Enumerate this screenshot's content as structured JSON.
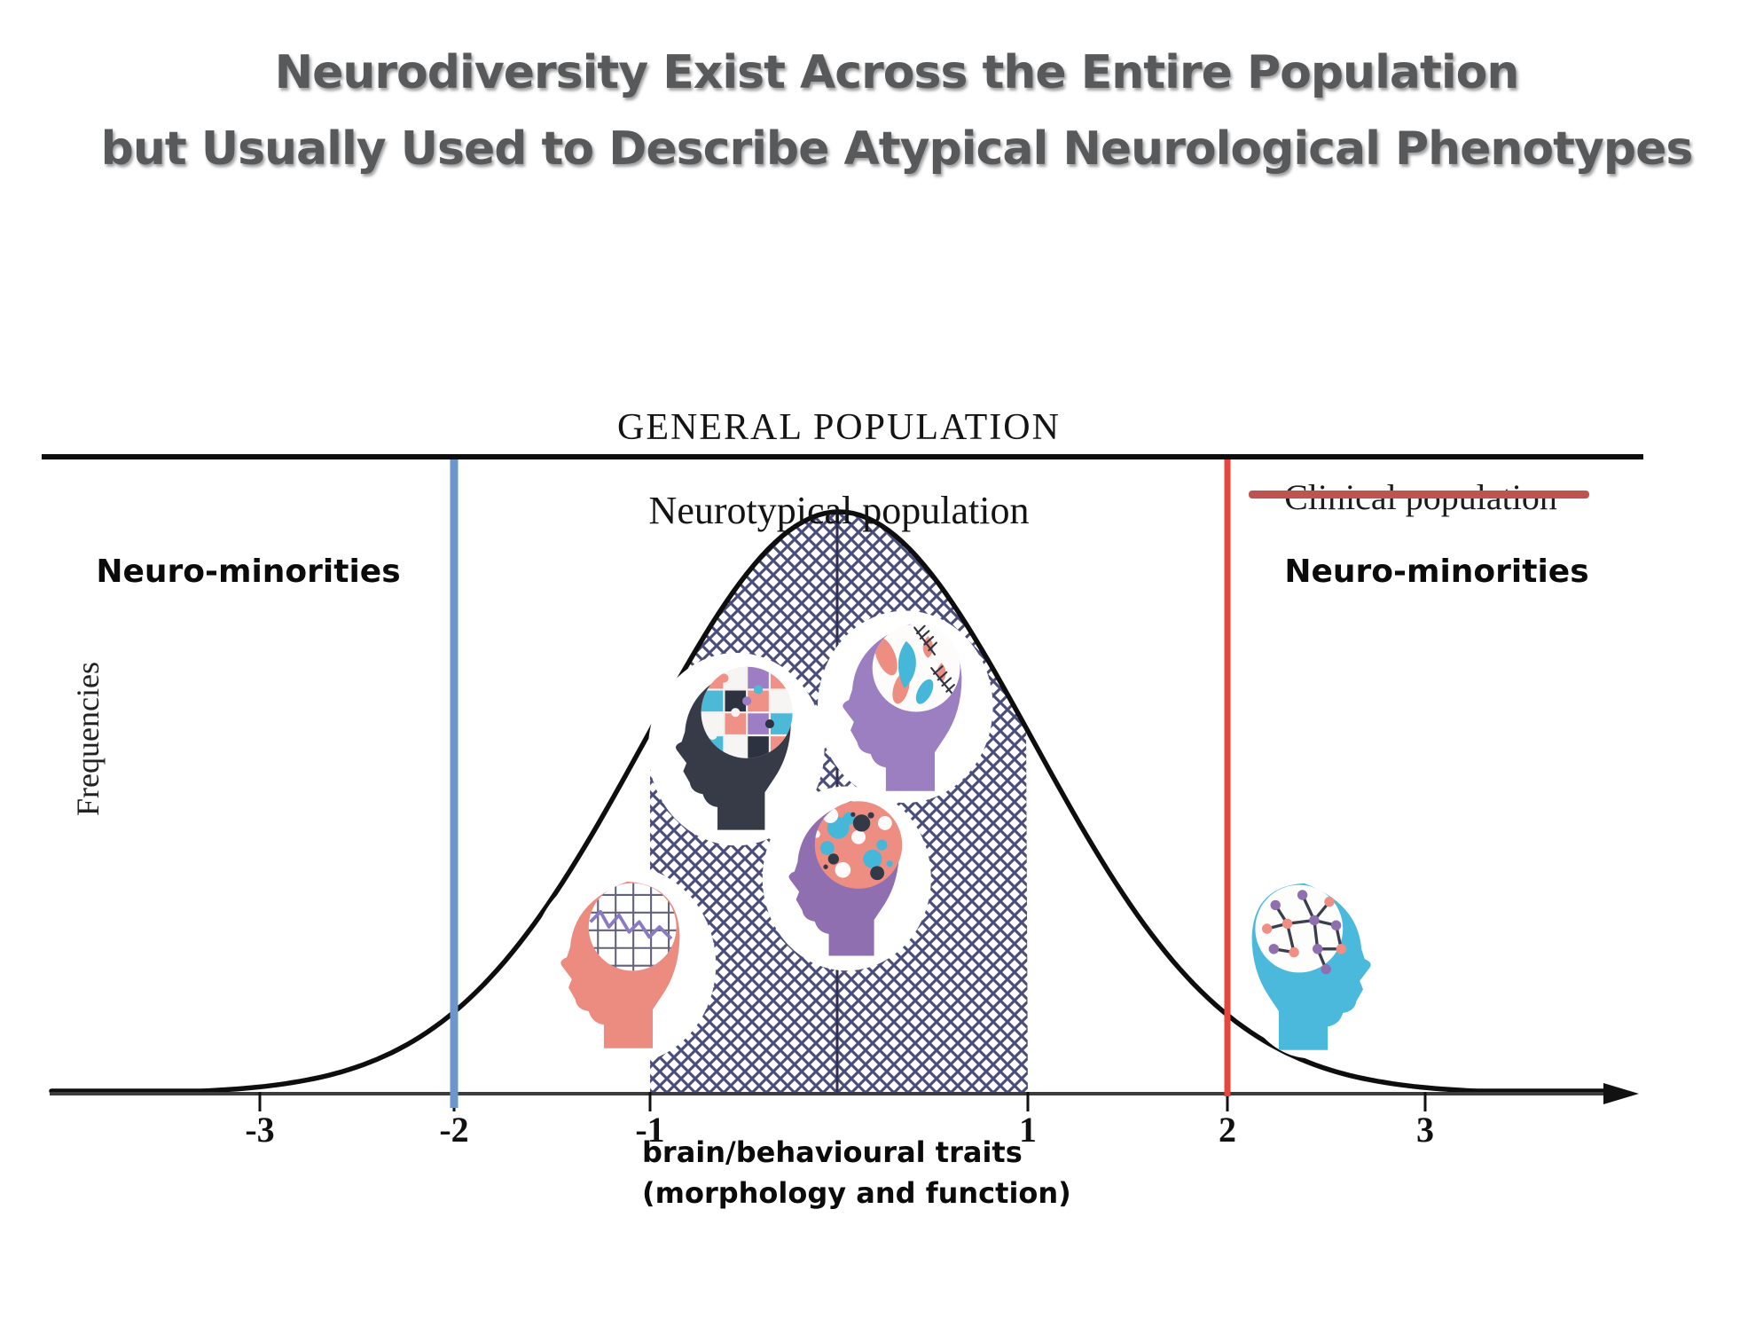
{
  "title": {
    "line1": "Neurodiversity Exist Across the Entire Population",
    "line2": "but Usually Used to Describe Atypical Neurological Phenotypes"
  },
  "chart_data": {
    "type": "area",
    "title": "GENERAL POPULATION",
    "curve_label": "Neurotypical population",
    "struck_label": "Clinical population",
    "left_region_label": "Neuro-minorities",
    "right_region_label": "Neuro-minorities",
    "ylabel": "Frequencies",
    "xlabel_line1": "brain/behavioural traits",
    "xlabel_line2": "(morphology and function)",
    "distribution": "standard normal bell curve, mean 0",
    "x_ticks": [
      -3,
      -2,
      -1,
      1,
      2,
      3
    ],
    "x_tick_labels": [
      "-3",
      "-2",
      "-1",
      "1",
      "2",
      "3"
    ],
    "shaded_region": [
      -1,
      1
    ],
    "shaded_style": "navy cross-hatch",
    "marker_lines": [
      {
        "x": -2,
        "color": "#6d97cb",
        "stroke_width": 9,
        "name": "blue-threshold"
      },
      {
        "x": 2,
        "color": "#e8453e",
        "stroke_width": 7,
        "name": "red-threshold"
      }
    ],
    "grid": false,
    "legend_position": "none"
  },
  "icons": [
    {
      "name": "graph-brain-head",
      "head_color": "#ec8c80",
      "brain": "white grid with purple trend line"
    },
    {
      "name": "puzzle-brain-head",
      "head_color": "#363b47",
      "brain": "multicolour jigsaw pieces"
    },
    {
      "name": "plant-brain-head",
      "head_color": "#9b7fc1",
      "brain": "leaves, ferns and tulips"
    },
    {
      "name": "splatter-brain-head",
      "head_color": "#8f6fb0",
      "brain": "paint splatters"
    },
    {
      "name": "network-brain-head",
      "head_color": "#4bb9dc",
      "brain": "connected network nodes"
    }
  ],
  "colors": {
    "title_text": "#58595b",
    "hatch": "#4b4e7a",
    "curve": "#0e0e0e",
    "axis": "#3c3c3c",
    "center_line": "#2f3254",
    "blue_line": "#6d97cb",
    "red_line": "#e8453e",
    "strikethrough": "#bf5350",
    "teal": "#45b7d8",
    "salmon": "#ee8e82",
    "purple": "#9b7fc1",
    "dark": "#2e3440"
  }
}
